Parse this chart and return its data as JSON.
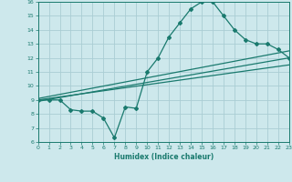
{
  "xlabel": "Humidex (Indice chaleur)",
  "xlim": [
    0,
    23
  ],
  "ylim": [
    6,
    16
  ],
  "yticks": [
    6,
    7,
    8,
    9,
    10,
    11,
    12,
    13,
    14,
    15,
    16
  ],
  "xticks": [
    0,
    1,
    2,
    3,
    4,
    5,
    6,
    7,
    8,
    9,
    10,
    11,
    12,
    13,
    14,
    15,
    16,
    17,
    18,
    19,
    20,
    21,
    22,
    23
  ],
  "bg_color": "#cde8ec",
  "line_color": "#1a7a6e",
  "grid_color": "#aacdd4",
  "curve_x": [
    0,
    1,
    2,
    3,
    4,
    5,
    6,
    7,
    8,
    9,
    10,
    11,
    12,
    13,
    14,
    15,
    16,
    17,
    18,
    19,
    20,
    21,
    22,
    23
  ],
  "curve_y": [
    9.0,
    9.0,
    9.0,
    8.3,
    8.2,
    8.2,
    7.7,
    6.3,
    8.5,
    8.4,
    11.0,
    12.0,
    13.5,
    14.5,
    15.5,
    16.0,
    16.0,
    15.0,
    14.0,
    13.3,
    13.0,
    13.0,
    12.6,
    12.0
  ],
  "reg_line1_x": [
    0,
    23
  ],
  "reg_line1_y": [
    8.9,
    12.0
  ],
  "reg_line2_x": [
    0,
    23
  ],
  "reg_line2_y": [
    9.0,
    11.5
  ],
  "reg_line3_x": [
    0,
    23
  ],
  "reg_line3_y": [
    9.1,
    12.5
  ]
}
